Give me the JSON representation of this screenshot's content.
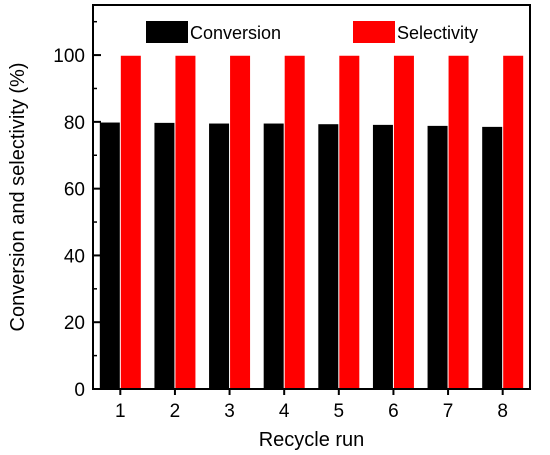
{
  "chart_data": {
    "type": "bar",
    "categories": [
      "1",
      "2",
      "3",
      "4",
      "5",
      "6",
      "7",
      "8"
    ],
    "series": [
      {
        "name": "Conversion",
        "color": "#000000",
        "values": [
          79.8,
          79.7,
          79.5,
          79.5,
          79.3,
          79.1,
          78.8,
          78.5
        ]
      },
      {
        "name": "Selectivity",
        "color": "#ff0000",
        "values": [
          99.8,
          99.8,
          99.8,
          99.8,
          99.8,
          99.8,
          99.8,
          99.8
        ]
      }
    ],
    "xlabel": "Recycle run",
    "ylabel": "Conversion and selectivity (%)",
    "ylim": [
      0,
      115
    ],
    "yticks": [
      0,
      20,
      40,
      60,
      80,
      100
    ],
    "grid": false,
    "legend_position": "top"
  }
}
